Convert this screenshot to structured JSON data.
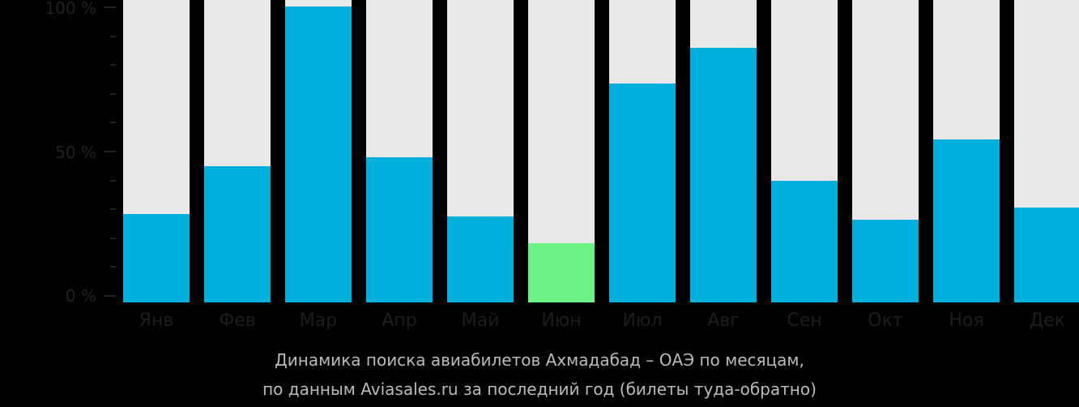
{
  "chart_data": {
    "type": "bar",
    "title": "Динамика поиска авиабилетов Ахмадабад – ОАЭ по месяцам,",
    "subtitle": "по данным Aviasales.ru за последний год (билеты туда-обратно)",
    "xlabel": "",
    "ylabel": "",
    "ylim": [
      0,
      100
    ],
    "y_ticks": [
      "0 %",
      "50 %",
      "100 %"
    ],
    "categories": [
      "Янв",
      "Фев",
      "Мар",
      "Апр",
      "Май",
      "Июн",
      "Июл",
      "Авг",
      "Сен",
      "Окт",
      "Ноя",
      "Дек"
    ],
    "values": [
      30,
      46,
      100,
      49,
      29,
      20,
      74,
      86,
      41,
      28,
      55,
      32
    ],
    "highlight_index": 5,
    "grid": false,
    "legend": null
  },
  "colors": {
    "bar": "#00b0dc",
    "highlight": "#6df286",
    "track": "#e8e8e8",
    "background": "#000000"
  },
  "axis": {
    "y_labels": [
      "100 %",
      "50 %",
      "0 %"
    ]
  },
  "caption": {
    "line1": "Динамика поиска авиабилетов Ахмадабад – ОАЭ по месяцам,",
    "line2": "по данным Aviasales.ru за последний год (билеты туда-обратно)"
  }
}
